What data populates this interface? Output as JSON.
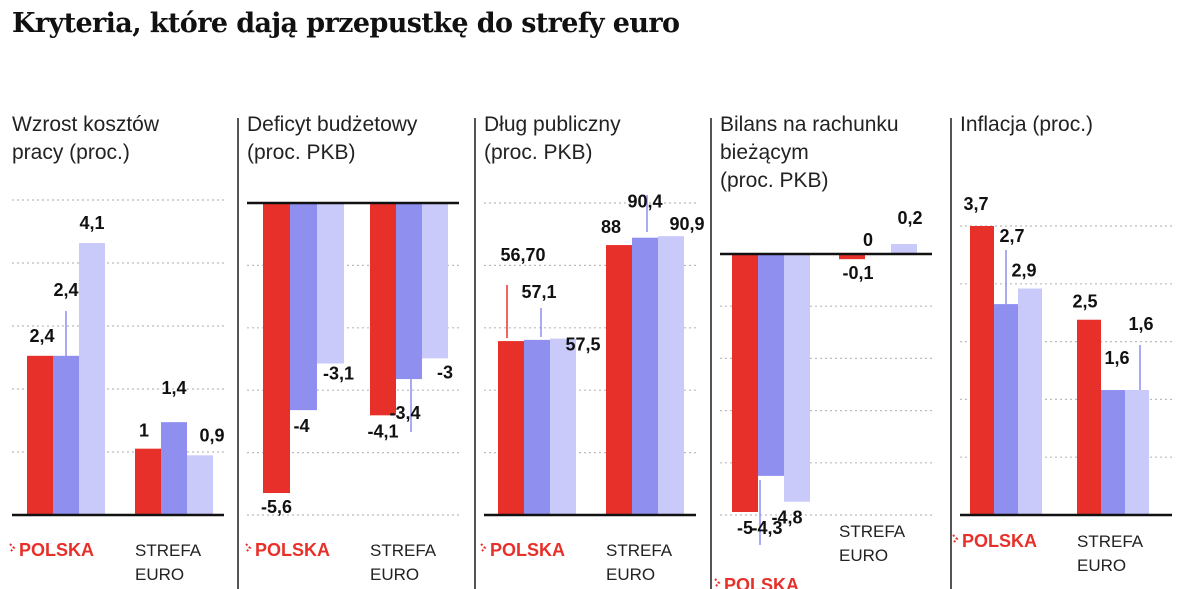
{
  "title": "Kryteria, które dają przepustkę do strefy euro",
  "colors": {
    "series1": "#e8302a",
    "series2": "#8f8ff0",
    "series3": "#c9c9fa",
    "accent_red": "#e8302a"
  },
  "chart_data": [
    {
      "type": "bar",
      "title": "Wzrost kosztów pracy (proc.)",
      "title_lines": [
        "Wzrost kosztów",
        "pracy (proc.)"
      ],
      "categories": [
        "POLSKA",
        "STREFA EURO"
      ],
      "category_lines": [
        [
          "POLSKA"
        ],
        [
          "STREFA",
          "EURO"
        ]
      ],
      "series": [
        {
          "values": [
            2.4,
            1
          ],
          "labels": [
            "2,4",
            "1"
          ]
        },
        {
          "values": [
            2.4,
            1.4
          ],
          "labels": [
            "2,4",
            "1,4"
          ]
        },
        {
          "values": [
            4.1,
            0.9
          ],
          "labels": [
            "4,1",
            "0,9"
          ]
        }
      ],
      "ylim": [
        0,
        4.9
      ],
      "grid": true
    },
    {
      "type": "bar",
      "title": "Deficyt budżetowy (proc. PKB)",
      "title_lines": [
        "Deficyt budżetowy",
        "(proc. PKB)"
      ],
      "categories": [
        "POLSKA",
        "STREFA EURO"
      ],
      "category_lines": [
        [
          "POLSKA"
        ],
        [
          "STREFA",
          "EURO"
        ]
      ],
      "series": [
        {
          "values": [
            -5.6,
            -4.1
          ],
          "labels": [
            "-5,6",
            "-4,1"
          ]
        },
        {
          "values": [
            -4,
            -3.4
          ],
          "labels": [
            "-4",
            "-3,4"
          ]
        },
        {
          "values": [
            -3.1,
            -3
          ],
          "labels": [
            "-3,1",
            "-3"
          ]
        }
      ],
      "ylim": [
        -5.6,
        0
      ],
      "grid": true
    },
    {
      "type": "bar",
      "title": "Dług publiczny (proc. PKB)",
      "title_lines": [
        "Dług publiczny",
        "(proc. PKB)"
      ],
      "categories": [
        "POLSKA",
        "STREFA EURO"
      ],
      "category_lines": [
        [
          "POLSKA"
        ],
        [
          "STREFA",
          "EURO"
        ]
      ],
      "series": [
        {
          "values": [
            56.7,
            88
          ],
          "labels": [
            "56,70",
            "88"
          ]
        },
        {
          "values": [
            57.1,
            90.4
          ],
          "labels": [
            "57,1",
            "90,4"
          ]
        },
        {
          "values": [
            57.5,
            90.9
          ],
          "labels": [
            "57,5",
            "90,9"
          ]
        }
      ],
      "ylim": [
        0,
        104
      ],
      "grid": true
    },
    {
      "type": "bar",
      "title": "Bilans na rachunku bieżącym (proc. PKB)",
      "title_lines": [
        "Bilans na rachunku",
        "bieżącym",
        "(proc. PKB)"
      ],
      "categories": [
        "POLSKA",
        "STREFA EURO"
      ],
      "category_lines": [
        [
          "POLSKA"
        ],
        [
          "STREFA",
          "EURO"
        ]
      ],
      "series": [
        {
          "values": [
            -5,
            -0.1
          ],
          "labels": [
            "-5",
            "-0,1"
          ]
        },
        {
          "values": [
            -4.3,
            0
          ],
          "labels": [
            "-4,3",
            "0"
          ]
        },
        {
          "values": [
            -4.8,
            0.2
          ],
          "labels": [
            "-4,8",
            "0,2"
          ]
        }
      ],
      "ylim": [
        -5,
        0.2
      ],
      "grid": true
    },
    {
      "type": "bar",
      "title": "Inflacja (proc.)",
      "title_lines": [
        "Inflacja (proc.)"
      ],
      "categories": [
        "POLSKA",
        "STREFA EURO"
      ],
      "category_lines": [
        [
          "POLSKA"
        ],
        [
          "STREFA",
          "EURO"
        ]
      ],
      "series": [
        {
          "values": [
            3.7,
            2.5
          ],
          "labels": [
            "3,7",
            "2,5"
          ]
        },
        {
          "values": [
            2.7,
            1.6
          ],
          "labels": [
            "2,7",
            "1,6"
          ]
        },
        {
          "values": [
            2.9,
            1.6
          ],
          "labels": [
            "2,9",
            "1,6"
          ]
        }
      ],
      "ylim": [
        0,
        3.7
      ],
      "grid": true
    }
  ]
}
